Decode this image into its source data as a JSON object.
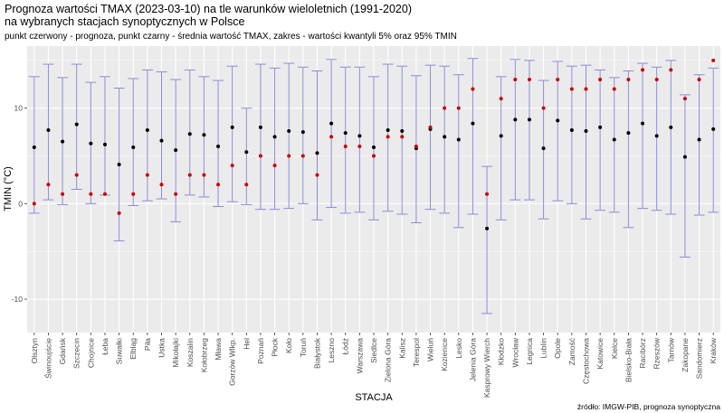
{
  "chart_data": {
    "type": "scatter",
    "title_line1": "Prognoza wartości TMAX (2023-03-10) na tle warunków wieloletnich (1991-2020)",
    "title_line2": "na wybranych stacjach synoptycznych w Polsce",
    "subtitle": "punkt czerwony - prognoza, punkt czarny - średnia wartość TMAX, zakres - wartości kwantyli 5% oraz 95% TMIN",
    "xlabel": "STACJA",
    "ylabel": "TMIN (°C)",
    "caption": "źródło: IMGW-PIB, prognoza synoptyczna",
    "ylim": [
      -13.5,
      16.5
    ],
    "yticks": [
      -10,
      0,
      10
    ],
    "colors": {
      "panel": "#ebebeb",
      "grid_major": "#ffffff",
      "errorbar": "#8b8bd8",
      "forecast": "#cc0000",
      "mean": "#000000"
    },
    "categories": [
      "Olsztyn",
      "Świnoujście",
      "Gdańsk",
      "Szczecin",
      "Chojnice",
      "Łeba",
      "Suwałki",
      "Elbląg",
      "Piła",
      "Ustka",
      "Mikołajki",
      "Koszalin",
      "Kołobrzeg",
      "Mława",
      "Gorzów Wlkp.",
      "Hel",
      "Poznań",
      "Płock",
      "Koło",
      "Toruń",
      "Białystok",
      "Leszno",
      "Łódź",
      "Warszawa",
      "Siedlce",
      "Zielona Góra",
      "Kalisz",
      "Terespol",
      "Wieluń",
      "Kozienice",
      "Lesko",
      "Jelenia Góra",
      "Kasprowy Wierch",
      "Kłodzko",
      "Wrocław",
      "Legnica",
      "Lublin",
      "Opole",
      "Zamość",
      "Częstochowa",
      "Katowice",
      "Kielce",
      "Bielsko-Biała",
      "Racibórz",
      "Rzeszów",
      "Tarnów",
      "Zakopane",
      "Sandomierz",
      "Kraków"
    ],
    "series": [
      {
        "name": "prognoza",
        "values": [
          0,
          2,
          1,
          3,
          1,
          1,
          -1,
          1,
          3,
          2,
          1,
          3,
          3,
          2,
          4,
          2,
          5,
          4,
          5,
          5,
          3,
          7,
          6,
          6,
          5,
          7,
          7,
          6,
          8,
          10,
          10,
          12,
          1,
          11,
          13,
          13,
          10,
          13,
          12,
          12,
          13,
          12,
          13,
          14,
          13,
          14,
          11,
          13,
          15
        ]
      },
      {
        "name": "średnia TMAX",
        "values": [
          5.9,
          7.7,
          6.5,
          8.3,
          6.3,
          6.2,
          4.1,
          5.9,
          7.7,
          6.6,
          5.6,
          7.3,
          7.2,
          6.0,
          8.0,
          5.4,
          8.0,
          7.0,
          7.6,
          7.5,
          5.3,
          8.4,
          7.4,
          7.1,
          5.9,
          7.7,
          7.6,
          5.8,
          7.8,
          7.0,
          6.7,
          8.4,
          -2.6,
          7.1,
          8.8,
          8.8,
          5.8,
          8.7,
          7.7,
          7.6,
          8.0,
          6.7,
          7.4,
          8.4,
          7.1,
          8.0,
          4.9,
          6.7,
          7.8
        ]
      },
      {
        "name": "kwantyl 5%",
        "values": [
          -1.0,
          0.4,
          -0.1,
          1.5,
          0.0,
          0.9,
          -3.9,
          -0.2,
          0.3,
          0.5,
          -1.9,
          0.9,
          0.7,
          -0.3,
          0.2,
          -0.1,
          -0.6,
          -0.6,
          -0.5,
          0.0,
          -1.7,
          -0.4,
          -1.0,
          -0.9,
          -1.7,
          -0.8,
          -1.1,
          -2.0,
          -0.6,
          -1.0,
          -2.5,
          -1.1,
          -11.5,
          -1.7,
          0.4,
          0.4,
          -1.6,
          0.3,
          0.0,
          -1.6,
          -0.7,
          -0.9,
          -2.5,
          -0.5,
          -0.7,
          -1.1,
          -5.6,
          -1.2,
          -0.9
        ]
      },
      {
        "name": "kwantyl 95%",
        "values": [
          13.3,
          14.6,
          13.2,
          14.6,
          12.7,
          13.3,
          12.1,
          13.1,
          14.0,
          13.8,
          13.0,
          14.0,
          13.3,
          12.9,
          14.4,
          10.0,
          14.6,
          14.2,
          14.7,
          14.3,
          13.9,
          15.1,
          14.3,
          14.3,
          13.3,
          14.6,
          14.4,
          13.4,
          14.5,
          14.4,
          13.5,
          15.2,
          3.9,
          13.3,
          15.1,
          15.0,
          12.9,
          14.9,
          14.4,
          14.5,
          14.0,
          13.2,
          13.9,
          14.7,
          14.3,
          15.0,
          11.4,
          13.5,
          14.2
        ]
      }
    ]
  }
}
